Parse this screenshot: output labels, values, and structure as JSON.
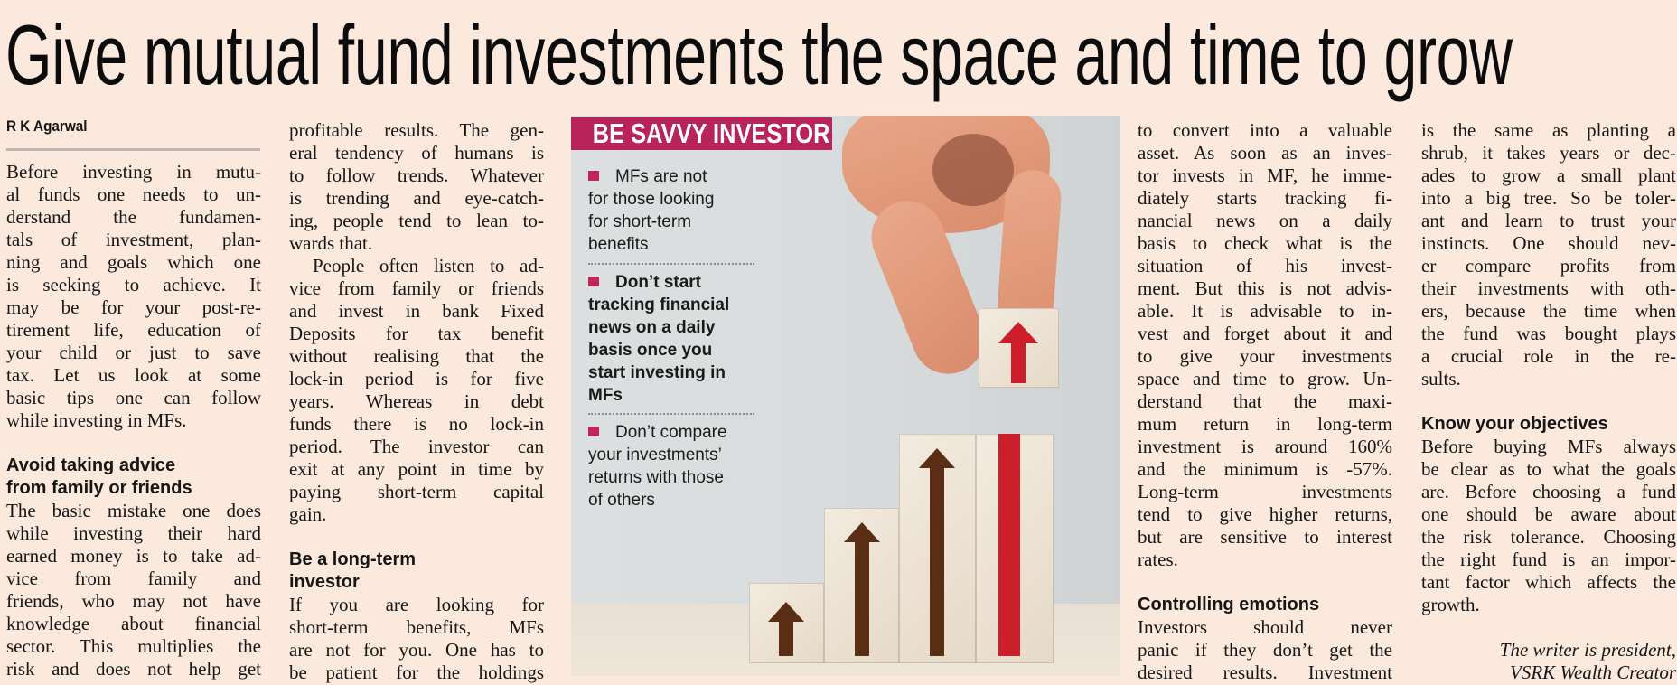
{
  "headline": "Give mutual fund investments the space and time to grow",
  "byline": "R K Agarwal",
  "colors": {
    "background": "#fce9dd",
    "sidebar_header": "#b8235a",
    "bullet": "#c0265a",
    "arrow_red": "#cc1f2b",
    "arrow_brown": "#5a2e14"
  },
  "columns": [
    [
      {
        "type": "p",
        "lines": [
          "Before investing in mutu-",
          "al funds one needs to un-",
          "derstand the fundamen-",
          "tals of investment, plan-",
          "ning and goals which one",
          "is seeking to achieve. It",
          "may be for your post-re-",
          "tirement life, education of",
          "your child or just to save",
          "tax. Let us look at some",
          "basic tips one can follow",
          "while investing in MFs."
        ]
      },
      {
        "type": "gap"
      },
      {
        "type": "h",
        "lines": [
          "Avoid taking advice",
          "from family or friends"
        ]
      },
      {
        "type": "p",
        "open": true,
        "lines": [
          "The basic mistake one does",
          "while investing their hard",
          "earned money is to take ad-",
          "vice from family and",
          "friends, who may not have",
          "knowledge about financial",
          "sector. This multiplies the",
          "risk and does not help get"
        ]
      }
    ],
    [
      {
        "type": "p",
        "lines": [
          "profitable results. The gen-",
          "eral tendency of humans is",
          "to follow trends. Whatever",
          "is trending and eye-catch-",
          "ing, people tend to lean to-",
          "wards that."
        ]
      },
      {
        "type": "p",
        "indent": true,
        "lines": [
          "People often listen to ad-",
          "vice from family or friends",
          "and invest in bank Fixed",
          "Deposits for tax benefit",
          "without realising that the",
          "lock-in period is for five",
          "years. Whereas in debt",
          "funds there is no lock-in",
          "period. The investor can",
          "exit at any point in time by",
          "paying short-term capital",
          "gain."
        ]
      },
      {
        "type": "gap"
      },
      {
        "type": "h",
        "lines": [
          "Be a long-term",
          "investor"
        ]
      },
      {
        "type": "p",
        "open": true,
        "lines": [
          "If you are looking for",
          "short-term benefits, MFs",
          "are not for you. One has to",
          "be patient for the holdings"
        ]
      }
    ],
    [
      {
        "type": "p",
        "lines": [
          "to convert into a valuable",
          "asset. As soon as an inves-",
          "tor invests in MF, he imme-",
          "diately starts tracking fi-",
          "nancial news on a daily",
          "basis to check what is the",
          "situation of his invest-",
          "ment. But this is not advis-",
          "able. It is advisable to in-",
          "vest and forget about it and",
          "to give your investments",
          "space and time to grow. Un-",
          "derstand that the maxi-",
          "mum return in long-term",
          "investment is around 160%",
          "and the minimum is -57%.",
          "Long-term investments",
          "tend to give higher returns,",
          "but are sensitive to interest",
          "rates."
        ]
      },
      {
        "type": "gap"
      },
      {
        "type": "h",
        "lines": [
          "Controlling emotions"
        ]
      },
      {
        "type": "p",
        "open": true,
        "lines": [
          "Investors should never",
          "panic if they don’t get the",
          "desired results. Investment"
        ]
      }
    ],
    [
      {
        "type": "p",
        "lines": [
          "is the same as planting a",
          "shrub, it takes years or dec-",
          "ades to grow a small plant",
          "into a big tree. So be toler-",
          "ant and learn to trust your",
          "instincts. One should nev-",
          "er compare profits from",
          "their investments with oth-",
          "ers, because the time when",
          "the fund was bought plays",
          "a crucial role in the re-",
          "sults."
        ]
      },
      {
        "type": "gap"
      },
      {
        "type": "h",
        "lines": [
          "Know your objectives"
        ]
      },
      {
        "type": "p",
        "lines": [
          "Before buying MFs always",
          "be clear as to what the goals",
          "are. Before choosing a fund",
          "one should be aware about",
          "the risk tolerance. Choosing",
          "the right fund is an impor-",
          "tant factor which affects the",
          "growth."
        ]
      },
      {
        "type": "gap"
      },
      {
        "type": "sig",
        "lines": [
          "The writer is president,",
          "VSRK Wealth Creator"
        ]
      }
    ]
  ],
  "sidebar": {
    "title": "BE SAVVY INVESTOR",
    "items": [
      {
        "lines": [
          "MFs are not",
          "for those looking",
          "for short-term",
          "benefits"
        ],
        "bold": false
      },
      {
        "lines": [
          "Don’t start",
          "tracking financial",
          "news on a daily",
          "basis once you",
          "start investing in",
          "MFs"
        ],
        "bold": true
      },
      {
        "lines": [
          "Don’t compare",
          "your investments’",
          "returns with those",
          "of others"
        ],
        "bold": false
      }
    ]
  }
}
